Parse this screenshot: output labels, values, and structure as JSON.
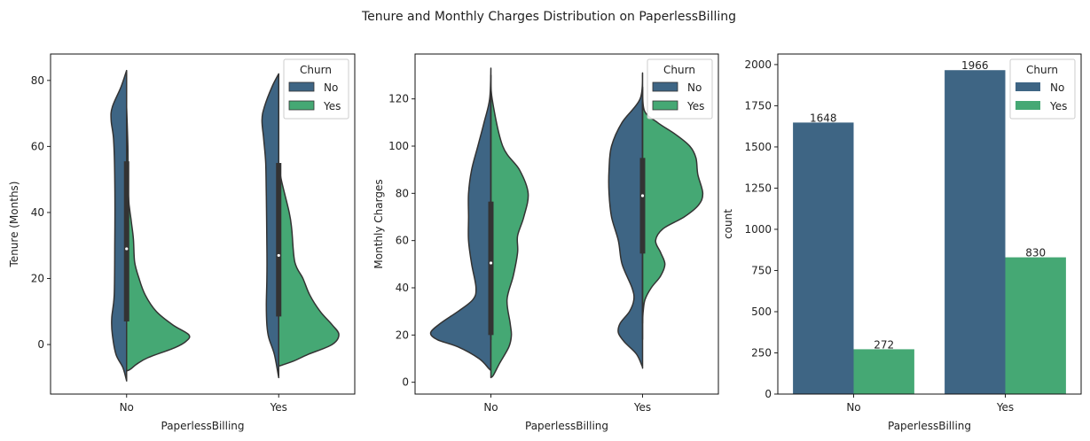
{
  "title": "Tenure and Monthly Charges Distribution on PaperlessBilling",
  "colors": {
    "No": "#3e6584",
    "Yes": "#45a874",
    "outline": "#333333"
  },
  "chart_data": [
    {
      "type": "violin",
      "split": true,
      "xlabel": "PaperlessBilling",
      "ylabel": "Tenure (Months)",
      "categories": [
        "No",
        "Yes"
      ],
      "yticks": [
        0,
        20,
        40,
        60,
        80
      ],
      "ylim": [
        -15,
        88
      ],
      "legend": {
        "title": "Churn",
        "entries": [
          "No",
          "Yes"
        ],
        "placement": "top-right"
      },
      "series": [
        {
          "name": "No",
          "profiles": [
            [
              [
                83,
                0
              ],
              [
                78,
                0.09
              ],
              [
                72,
                0.23
              ],
              [
                68,
                0.25
              ],
              [
                62,
                0.21
              ],
              [
                50,
                0.19
              ],
              [
                30,
                0.19
              ],
              [
                15,
                0.2
              ],
              [
                8,
                0.24
              ],
              [
                3,
                0.23
              ],
              [
                -3,
                0.17
              ],
              [
                -7,
                0.06
              ],
              [
                -11,
                0
              ]
            ],
            [
              [
                82,
                0
              ],
              [
                78,
                0.11
              ],
              [
                72,
                0.23
              ],
              [
                68,
                0.27
              ],
              [
                62,
                0.24
              ],
              [
                55,
                0.21
              ],
              [
                45,
                0.2
              ],
              [
                30,
                0.19
              ],
              [
                20,
                0.19
              ],
              [
                12,
                0.2
              ],
              [
                6,
                0.19
              ],
              [
                2,
                0.16
              ],
              [
                -3,
                0.07
              ],
              [
                -10,
                0
              ]
            ]
          ]
        },
        {
          "name": "Yes",
          "profiles": [
            [
              [
                72,
                0
              ],
              [
                60,
                0.02
              ],
              [
                45,
                0.03
              ],
              [
                38,
                0.07
              ],
              [
                32,
                0.11
              ],
              [
                25,
                0.13
              ],
              [
                20,
                0.2
              ],
              [
                15,
                0.3
              ],
              [
                10,
                0.48
              ],
              [
                6,
                0.74
              ],
              [
                3,
                1.0
              ],
              [
                1,
                0.96
              ],
              [
                -1,
                0.77
              ],
              [
                -4,
                0.34
              ],
              [
                -6,
                0.16
              ],
              [
                -7.5,
                0.06
              ],
              [
                -8,
                0
              ]
            ],
            [
              [
                55,
                0
              ],
              [
                50,
                0.04
              ],
              [
                40,
                0.17
              ],
              [
                35,
                0.21
              ],
              [
                25,
                0.26
              ],
              [
                20,
                0.39
              ],
              [
                15,
                0.5
              ],
              [
                10,
                0.67
              ],
              [
                6,
                0.86
              ],
              [
                3,
                0.97
              ],
              [
                0,
                0.86
              ],
              [
                -3,
                0.47
              ],
              [
                -5,
                0.24
              ],
              [
                -6.3,
                0.04
              ],
              [
                -6.5,
                0
              ]
            ]
          ]
        }
      ],
      "box": [
        {
          "q1": 7,
          "median": 29,
          "q3": 55.5,
          "whisker_low": 0,
          "whisker_high": 72
        },
        {
          "q1": 8.5,
          "median": 27,
          "q3": 55,
          "whisker_low": 0,
          "whisker_high": 72
        }
      ]
    },
    {
      "type": "violin",
      "split": true,
      "xlabel": "PaperlessBilling",
      "ylabel": "Monthly Charges",
      "categories": [
        "No",
        "Yes"
      ],
      "yticks": [
        0,
        20,
        40,
        60,
        80,
        100,
        120
      ],
      "ylim": [
        -5,
        139
      ],
      "legend": {
        "title": "Churn",
        "entries": [
          "No",
          "Yes"
        ],
        "placement": "top-right"
      },
      "series": [
        {
          "name": "No",
          "profiles": [
            [
              [
                133,
                0
              ],
              [
                120,
                0.02
              ],
              [
                110,
                0.11
              ],
              [
                100,
                0.21
              ],
              [
                90,
                0.31
              ],
              [
                80,
                0.36
              ],
              [
                70,
                0.36
              ],
              [
                60,
                0.36
              ],
              [
                50,
                0.31
              ],
              [
                40,
                0.24
              ],
              [
                35,
                0.29
              ],
              [
                30,
                0.53
              ],
              [
                25,
                0.81
              ],
              [
                21,
                0.97
              ],
              [
                18,
                0.86
              ],
              [
                15,
                0.53
              ],
              [
                10,
                0.19
              ],
              [
                6,
                0.04
              ],
              [
                5,
                0
              ]
            ],
            [
              [
                131,
                0
              ],
              [
                120,
                0.04
              ],
              [
                110,
                0.33
              ],
              [
                100,
                0.5
              ],
              [
                90,
                0.54
              ],
              [
                80,
                0.54
              ],
              [
                70,
                0.5
              ],
              [
                60,
                0.39
              ],
              [
                50,
                0.33
              ],
              [
                40,
                0.17
              ],
              [
                35,
                0.14
              ],
              [
                30,
                0.21
              ],
              [
                25,
                0.36
              ],
              [
                21,
                0.39
              ],
              [
                17,
                0.29
              ],
              [
                12,
                0.1
              ],
              [
                7,
                0.01
              ],
              [
                6,
                0
              ]
            ]
          ]
        },
        {
          "name": "Yes",
          "profiles": [
            [
              [
                130,
                0
              ],
              [
                120,
                0.02
              ],
              [
                100,
                0.19
              ],
              [
                90,
                0.46
              ],
              [
                80,
                0.6
              ],
              [
                70,
                0.53
              ],
              [
                62,
                0.43
              ],
              [
                55,
                0.43
              ],
              [
                45,
                0.36
              ],
              [
                35,
                0.26
              ],
              [
                25,
                0.31
              ],
              [
                20,
                0.33
              ],
              [
                15,
                0.29
              ],
              [
                8,
                0.14
              ],
              [
                3,
                0.04
              ],
              [
                2,
                0
              ]
            ],
            [
              [
                125,
                0
              ],
              [
                115,
                0.03
              ],
              [
                110,
                0.24
              ],
              [
                105,
                0.53
              ],
              [
                100,
                0.76
              ],
              [
                95,
                0.86
              ],
              [
                88,
                0.89
              ],
              [
                80,
                0.97
              ],
              [
                75,
                0.9
              ],
              [
                70,
                0.67
              ],
              [
                65,
                0.33
              ],
              [
                60,
                0.21
              ],
              [
                55,
                0.29
              ],
              [
                50,
                0.36
              ],
              [
                45,
                0.29
              ],
              [
                40,
                0.14
              ],
              [
                35,
                0.04
              ],
              [
                30,
                0.01
              ],
              [
                25,
                0
              ]
            ]
          ]
        }
      ],
      "box": [
        {
          "q1": 20,
          "median": 50.5,
          "q3": 76.5,
          "whisker_low": 18,
          "whisker_high": 119
        },
        {
          "q1": 54.5,
          "median": 79,
          "q3": 95,
          "whisker_low": 18,
          "whisker_high": 119
        }
      ]
    },
    {
      "type": "bar",
      "xlabel": "PaperlessBilling",
      "ylabel": "count",
      "categories": [
        "No",
        "Yes"
      ],
      "yticks": [
        0,
        250,
        500,
        750,
        1000,
        1250,
        1500,
        1750,
        2000
      ],
      "ylim": [
        0,
        2064
      ],
      "legend": {
        "title": "Churn",
        "entries": [
          "No",
          "Yes"
        ],
        "placement": "top-right"
      },
      "series": [
        {
          "name": "No",
          "values": [
            1648,
            1966
          ],
          "labels": [
            "1648",
            "1966"
          ]
        },
        {
          "name": "Yes",
          "values": [
            272,
            830
          ],
          "labels": [
            "272",
            "830"
          ]
        }
      ]
    }
  ]
}
